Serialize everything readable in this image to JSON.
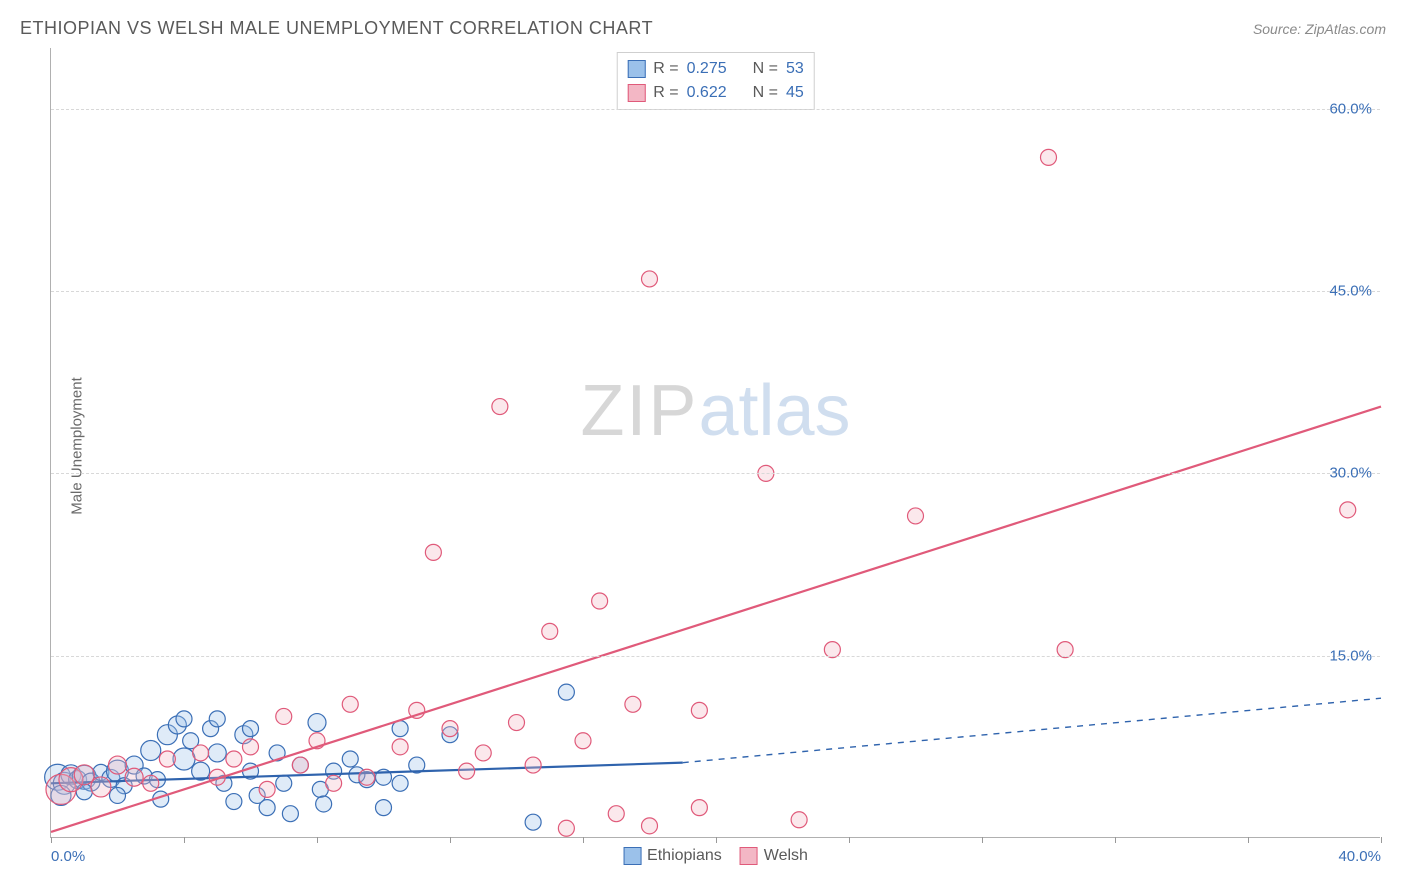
{
  "header": {
    "title": "ETHIOPIAN VS WELSH MALE UNEMPLOYMENT CORRELATION CHART",
    "source_prefix": "Source: ",
    "source_name": "ZipAtlas.com"
  },
  "y_axis_label": "Male Unemployment",
  "watermark": {
    "part1": "ZIP",
    "part2": "atlas"
  },
  "chart": {
    "type": "scatter",
    "background_color": "#ffffff",
    "grid_color": "#d8d8d8",
    "axis_color": "#b0b0b0",
    "xlim": [
      0,
      40
    ],
    "ylim": [
      0,
      65
    ],
    "x_ticks": [
      0,
      4,
      8,
      12,
      16,
      20,
      24,
      28,
      32,
      36,
      40
    ],
    "x_tick_labels": {
      "0": "0.0%",
      "40": "40.0%"
    },
    "y_gridlines": [
      15,
      30,
      45,
      60
    ],
    "y_tick_labels": {
      "15": "15.0%",
      "30": "30.0%",
      "45": "45.0%",
      "60": "60.0%"
    },
    "label_color": "#3b6fb6",
    "label_fontsize": 15,
    "marker_radius_min": 7,
    "marker_radius_max": 15,
    "marker_stroke_width": 1.2,
    "marker_fill_opacity": 0.32,
    "trendline_width": 2.2,
    "series": [
      {
        "name": "Ethiopians",
        "color_fill": "#9bc1ea",
        "color_stroke": "#3b6fb6",
        "trend_color": "#2f63ad",
        "R": 0.275,
        "N": 53,
        "trendline": {
          "x1": 0,
          "y1": 4.5,
          "x2": 19,
          "y2": 6.2,
          "dash_after_x": 19,
          "x2_dash": 40,
          "y2_dash": 11.5
        },
        "points": [
          {
            "x": 0.2,
            "y": 5,
            "r": 13
          },
          {
            "x": 0.4,
            "y": 4.5,
            "r": 11
          },
          {
            "x": 0.6,
            "y": 5.2,
            "r": 10
          },
          {
            "x": 0.8,
            "y": 4.8,
            "r": 9
          },
          {
            "x": 1.0,
            "y": 5.0,
            "r": 12
          },
          {
            "x": 1.2,
            "y": 4.6,
            "r": 9
          },
          {
            "x": 1.5,
            "y": 5.4,
            "r": 8
          },
          {
            "x": 1.8,
            "y": 4.9,
            "r": 9
          },
          {
            "x": 2.0,
            "y": 5.5,
            "r": 11
          },
          {
            "x": 2.2,
            "y": 4.3,
            "r": 8
          },
          {
            "x": 2.5,
            "y": 6.0,
            "r": 9
          },
          {
            "x": 2.8,
            "y": 5.1,
            "r": 8
          },
          {
            "x": 3.0,
            "y": 7.2,
            "r": 10
          },
          {
            "x": 3.2,
            "y": 4.8,
            "r": 8
          },
          {
            "x": 3.5,
            "y": 8.5,
            "r": 10
          },
          {
            "x": 3.8,
            "y": 9.3,
            "r": 9
          },
          {
            "x": 4.0,
            "y": 6.5,
            "r": 11
          },
          {
            "x": 4.2,
            "y": 8.0,
            "r": 8
          },
          {
            "x": 4.5,
            "y": 5.5,
            "r": 9
          },
          {
            "x": 4.8,
            "y": 9.0,
            "r": 8
          },
          {
            "x": 5.0,
            "y": 7.0,
            "r": 9
          },
          {
            "x": 5.2,
            "y": 4.5,
            "r": 8
          },
          {
            "x": 5.5,
            "y": 3.0,
            "r": 8
          },
          {
            "x": 5.8,
            "y": 8.5,
            "r": 9
          },
          {
            "x": 6.0,
            "y": 5.5,
            "r": 8
          },
          {
            "x": 6.2,
            "y": 3.5,
            "r": 8
          },
          {
            "x": 6.5,
            "y": 2.5,
            "r": 8
          },
          {
            "x": 6.8,
            "y": 7.0,
            "r": 8
          },
          {
            "x": 7.0,
            "y": 4.5,
            "r": 8
          },
          {
            "x": 7.2,
            "y": 2.0,
            "r": 8
          },
          {
            "x": 7.5,
            "y": 6.0,
            "r": 8
          },
          {
            "x": 8.0,
            "y": 9.5,
            "r": 9
          },
          {
            "x": 8.1,
            "y": 4.0,
            "r": 8
          },
          {
            "x": 8.2,
            "y": 2.8,
            "r": 8
          },
          {
            "x": 8.5,
            "y": 5.5,
            "r": 8
          },
          {
            "x": 9.0,
            "y": 6.5,
            "r": 8
          },
          {
            "x": 9.5,
            "y": 4.8,
            "r": 8
          },
          {
            "x": 10.0,
            "y": 5.0,
            "r": 8
          },
          {
            "x": 10.0,
            "y": 2.5,
            "r": 8
          },
          {
            "x": 10.5,
            "y": 9.0,
            "r": 8
          },
          {
            "x": 10.5,
            "y": 4.5,
            "r": 8
          },
          {
            "x": 11.0,
            "y": 6.0,
            "r": 8
          },
          {
            "x": 12.0,
            "y": 8.5,
            "r": 8
          },
          {
            "x": 14.5,
            "y": 1.3,
            "r": 8
          },
          {
            "x": 15.5,
            "y": 12.0,
            "r": 8
          },
          {
            "x": 4.0,
            "y": 9.8,
            "r": 8
          },
          {
            "x": 3.3,
            "y": 3.2,
            "r": 8
          },
          {
            "x": 2.0,
            "y": 3.5,
            "r": 8
          },
          {
            "x": 1.0,
            "y": 3.8,
            "r": 8
          },
          {
            "x": 0.3,
            "y": 3.5,
            "r": 10
          },
          {
            "x": 6.0,
            "y": 9.0,
            "r": 8
          },
          {
            "x": 5.0,
            "y": 9.8,
            "r": 8
          },
          {
            "x": 9.2,
            "y": 5.2,
            "r": 8
          }
        ]
      },
      {
        "name": "Welsh",
        "color_fill": "#f3b7c5",
        "color_stroke": "#e05a7a",
        "trend_color": "#e05a7a",
        "R": 0.622,
        "N": 45,
        "trendline": {
          "x1": 0,
          "y1": 0.5,
          "x2": 40,
          "y2": 35.5
        },
        "points": [
          {
            "x": 0.3,
            "y": 4.0,
            "r": 15
          },
          {
            "x": 0.6,
            "y": 4.8,
            "r": 12
          },
          {
            "x": 1.0,
            "y": 5.2,
            "r": 10
          },
          {
            "x": 1.5,
            "y": 4.2,
            "r": 10
          },
          {
            "x": 2.0,
            "y": 6.0,
            "r": 9
          },
          {
            "x": 2.5,
            "y": 5.0,
            "r": 9
          },
          {
            "x": 3.0,
            "y": 4.5,
            "r": 8
          },
          {
            "x": 3.5,
            "y": 6.5,
            "r": 8
          },
          {
            "x": 4.5,
            "y": 7.0,
            "r": 8
          },
          {
            "x": 5.0,
            "y": 5.0,
            "r": 8
          },
          {
            "x": 5.5,
            "y": 6.5,
            "r": 8
          },
          {
            "x": 6.0,
            "y": 7.5,
            "r": 8
          },
          {
            "x": 6.5,
            "y": 4.0,
            "r": 8
          },
          {
            "x": 7.0,
            "y": 10.0,
            "r": 8
          },
          {
            "x": 7.5,
            "y": 6.0,
            "r": 8
          },
          {
            "x": 8.0,
            "y": 8.0,
            "r": 8
          },
          {
            "x": 8.5,
            "y": 4.5,
            "r": 8
          },
          {
            "x": 9.0,
            "y": 11.0,
            "r": 8
          },
          {
            "x": 9.5,
            "y": 5.0,
            "r": 8
          },
          {
            "x": 10.5,
            "y": 7.5,
            "r": 8
          },
          {
            "x": 11.0,
            "y": 10.5,
            "r": 8
          },
          {
            "x": 11.5,
            "y": 23.5,
            "r": 8
          },
          {
            "x": 12.0,
            "y": 9.0,
            "r": 8
          },
          {
            "x": 12.5,
            "y": 5.5,
            "r": 8
          },
          {
            "x": 13.0,
            "y": 7.0,
            "r": 8
          },
          {
            "x": 13.5,
            "y": 35.5,
            "r": 8
          },
          {
            "x": 14.0,
            "y": 9.5,
            "r": 8
          },
          {
            "x": 14.5,
            "y": 6.0,
            "r": 8
          },
          {
            "x": 15.0,
            "y": 17.0,
            "r": 8
          },
          {
            "x": 16.0,
            "y": 8.0,
            "r": 8
          },
          {
            "x": 16.5,
            "y": 19.5,
            "r": 8
          },
          {
            "x": 17.0,
            "y": 2.0,
            "r": 8
          },
          {
            "x": 17.5,
            "y": 11.0,
            "r": 8
          },
          {
            "x": 18.0,
            "y": 46.0,
            "r": 8
          },
          {
            "x": 18.0,
            "y": 1.0,
            "r": 8
          },
          {
            "x": 19.5,
            "y": 10.5,
            "r": 8
          },
          {
            "x": 19.5,
            "y": 2.5,
            "r": 8
          },
          {
            "x": 21.5,
            "y": 30.0,
            "r": 8
          },
          {
            "x": 22.5,
            "y": 1.5,
            "r": 8
          },
          {
            "x": 23.5,
            "y": 15.5,
            "r": 8
          },
          {
            "x": 26.0,
            "y": 26.5,
            "r": 8
          },
          {
            "x": 30.0,
            "y": 56.0,
            "r": 8
          },
          {
            "x": 30.5,
            "y": 15.5,
            "r": 8
          },
          {
            "x": 39.0,
            "y": 27.0,
            "r": 8
          },
          {
            "x": 15.5,
            "y": 0.8,
            "r": 8
          }
        ]
      }
    ]
  },
  "legend_top_labels": {
    "R": "R =",
    "N": "N ="
  },
  "legend_bottom": [
    {
      "label": "Ethiopians",
      "fill": "#9bc1ea",
      "stroke": "#3b6fb6"
    },
    {
      "label": "Welsh",
      "fill": "#f3b7c5",
      "stroke": "#e05a7a"
    }
  ]
}
